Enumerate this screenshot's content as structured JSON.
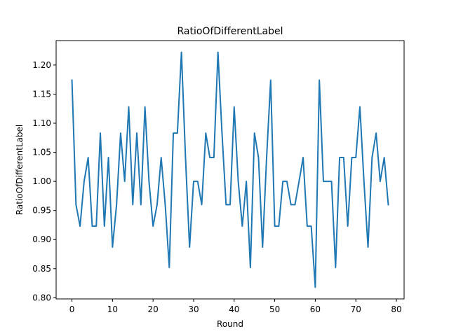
{
  "chart_data": {
    "type": "line",
    "title": "RatioOfDifferentLabel",
    "xlabel": "Round",
    "ylabel": "RatioOfDifferentLabel",
    "xlim": [
      -3.9,
      81.9
    ],
    "ylim": [
      0.798,
      1.242
    ],
    "xticks": [
      0,
      10,
      20,
      30,
      40,
      50,
      60,
      70,
      80
    ],
    "xtick_labels": [
      "0",
      "10",
      "20",
      "30",
      "40",
      "50",
      "60",
      "70",
      "80"
    ],
    "yticks": [
      0.8,
      0.85,
      0.9,
      0.95,
      1.0,
      1.05,
      1.1,
      1.15,
      1.2
    ],
    "ytick_labels": [
      "0.80",
      "0.85",
      "0.90",
      "0.95",
      "1.00",
      "1.05",
      "1.10",
      "1.15",
      "1.20"
    ],
    "grid": false,
    "series": [
      {
        "color": "#1f77b4",
        "x": [
          0,
          1,
          2,
          3,
          4,
          5,
          6,
          7,
          8,
          9,
          10,
          11,
          12,
          13,
          14,
          15,
          16,
          17,
          18,
          19,
          20,
          21,
          22,
          23,
          24,
          25,
          26,
          27,
          28,
          29,
          30,
          31,
          32,
          33,
          34,
          35,
          36,
          37,
          38,
          39,
          40,
          41,
          42,
          43,
          44,
          45,
          46,
          47,
          48,
          49,
          50,
          51,
          52,
          53,
          54,
          55,
          56,
          57,
          58,
          59,
          60,
          61,
          62,
          63,
          64,
          65,
          66,
          67,
          68,
          69,
          70,
          71,
          72,
          73,
          74,
          75,
          76,
          77,
          78
        ],
        "y": [
          1.174,
          0.96,
          0.923,
          1.0,
          1.041,
          0.923,
          0.923,
          1.083,
          0.923,
          1.041,
          0.887,
          0.96,
          1.083,
          1.0,
          1.128,
          0.96,
          1.083,
          0.96,
          1.128,
          1.0,
          0.923,
          0.96,
          1.041,
          0.96,
          0.852,
          1.083,
          1.083,
          1.222,
          1.041,
          0.887,
          1.0,
          1.0,
          0.96,
          1.083,
          1.041,
          1.041,
          1.222,
          1.083,
          0.96,
          0.96,
          1.128,
          1.0,
          0.923,
          1.0,
          0.852,
          1.083,
          1.041,
          0.887,
          1.041,
          1.174,
          0.923,
          0.923,
          1.0,
          1.0,
          0.96,
          0.96,
          1.0,
          1.041,
          0.923,
          0.923,
          0.818,
          1.174,
          1.0,
          1.0,
          1.0,
          0.852,
          1.041,
          1.041,
          0.923,
          1.041,
          1.041,
          1.128,
          1.0,
          0.887,
          1.041,
          1.083,
          1.0,
          1.041,
          0.96
        ]
      }
    ]
  }
}
